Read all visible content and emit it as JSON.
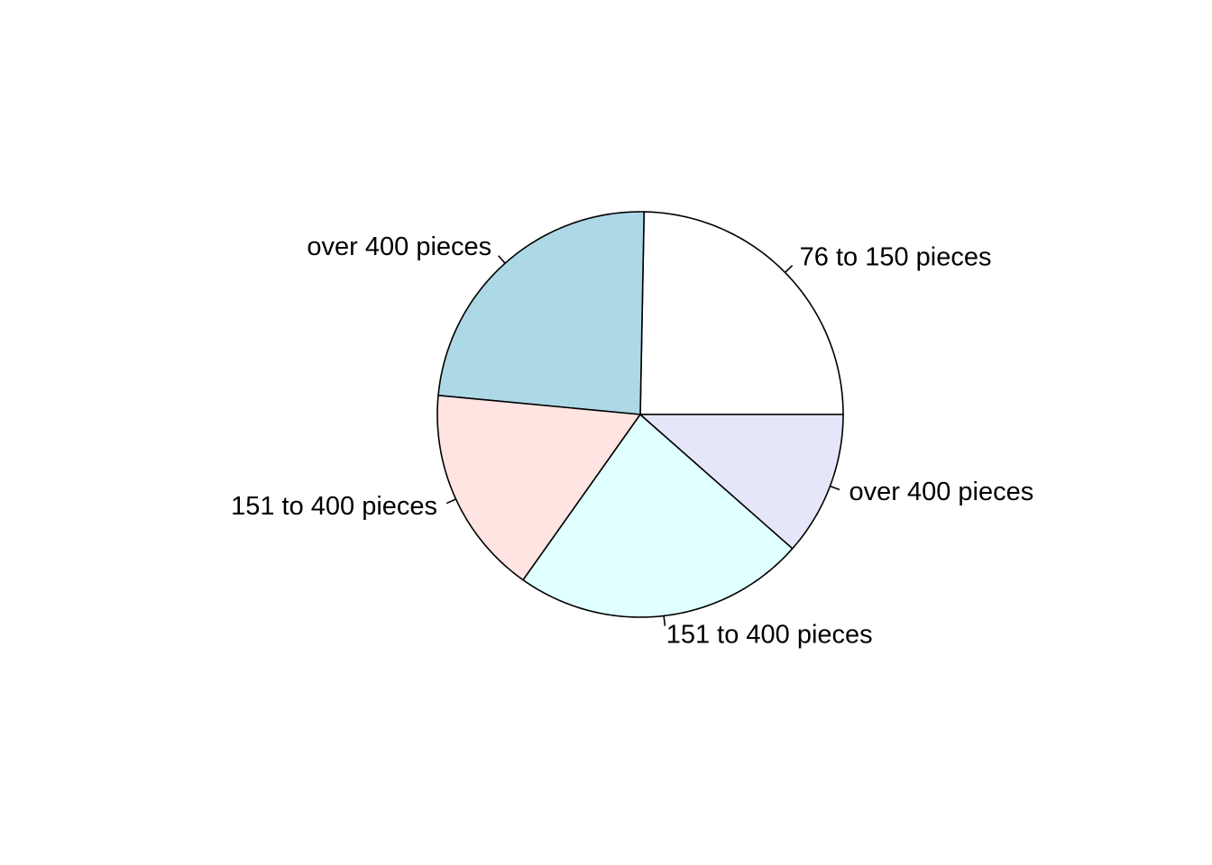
{
  "chart_data": {
    "type": "pie",
    "start_angle_deg": 0,
    "direction": "counterclockwise",
    "slices": [
      {
        "label": "76 to 150 pieces",
        "value": 24.7,
        "color": "#FFFFFF"
      },
      {
        "label": "over 400 pieces",
        "value": 23.8,
        "color": "#ADD8E6"
      },
      {
        "label": "151 to 400 pieces",
        "value": 16.7,
        "color": "#FFE4E1"
      },
      {
        "label": "151 to 400 pieces",
        "value": 23.3,
        "color": "#E0FFFF"
      },
      {
        "label": "over 400 pieces",
        "value": 11.5,
        "color": "#E6E6FA"
      }
    ]
  }
}
